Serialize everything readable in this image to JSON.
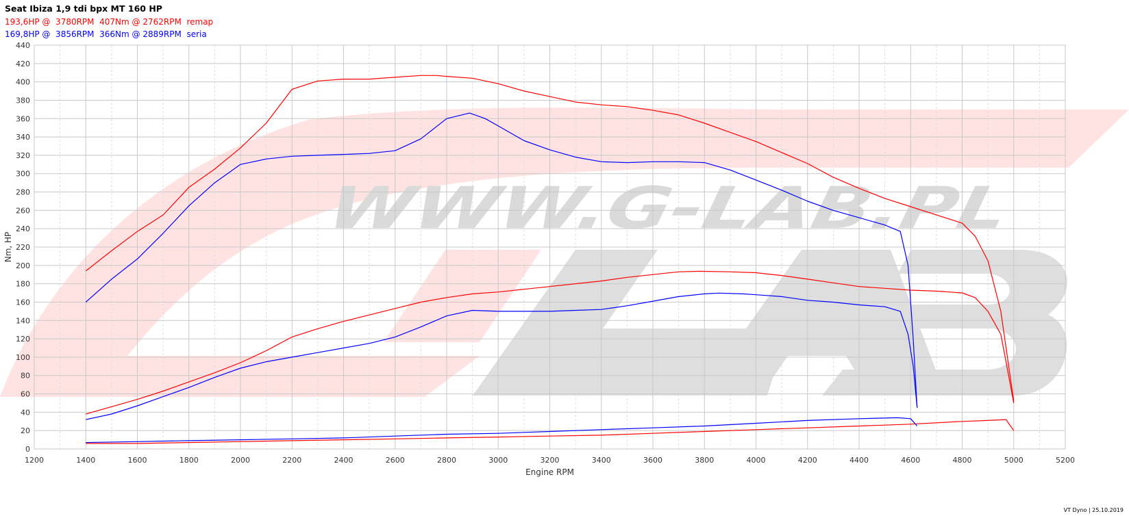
{
  "header": {
    "title": "Seat Ibiza 1,9 tdi bpx MT 160 HP",
    "remap_line": "193,6HP @  3780RPM  407Nm @ 2762RPM  remap",
    "seria_line": "169,8HP @  3856RPM  366Nm @ 2889RPM  seria"
  },
  "footer": {
    "text": "VT Dyno | 25.10.2019"
  },
  "watermark": {
    "text": "WWW.G-LAB.PL"
  },
  "colors": {
    "remap": "#ff0000",
    "seria": "#0000ff",
    "grid": "#c8c8c8",
    "watermark_red": "#ffe0e0",
    "watermark_gray": "#dcdcdc"
  },
  "chart_data": {
    "type": "line",
    "xlabel": "Engine RPM",
    "ylabel": "Nm, HP",
    "xlim": [
      1200,
      5200
    ],
    "ylim": [
      0,
      440
    ],
    "xticks": [
      1200,
      1400,
      1600,
      1800,
      2000,
      2200,
      2400,
      2600,
      2800,
      3000,
      3200,
      3400,
      3600,
      3800,
      4000,
      4200,
      4400,
      4600,
      4800,
      5000,
      5200
    ],
    "yticks": [
      0,
      20,
      40,
      60,
      80,
      100,
      120,
      140,
      160,
      180,
      200,
      220,
      240,
      260,
      280,
      300,
      320,
      340,
      360,
      380,
      400,
      420,
      440
    ],
    "grid": true,
    "series": [
      {
        "name": "remap",
        "color": "#ff0000",
        "kind": "torque",
        "x": [
          1400,
          1500,
          1600,
          1700,
          1800,
          1900,
          2000,
          2100,
          2200,
          2300,
          2400,
          2500,
          2600,
          2700,
          2762,
          2800,
          2900,
          3000,
          3100,
          3200,
          3300,
          3400,
          3500,
          3600,
          3700,
          3800,
          3900,
          4000,
          4100,
          4200,
          4300,
          4400,
          4500,
          4600,
          4700,
          4800,
          4850,
          4900,
          4950,
          5000
        ],
        "y": [
          194,
          216,
          237,
          255,
          285,
          305,
          328,
          355,
          392,
          401,
          403,
          403,
          405,
          407,
          407,
          406,
          404,
          398,
          390,
          384,
          378,
          375,
          373,
          369,
          364,
          355,
          345,
          335,
          323,
          311,
          296,
          284,
          273,
          264,
          255,
          246,
          232,
          205,
          150,
          52
        ]
      },
      {
        "name": "remap",
        "color": "#ff0000",
        "kind": "power",
        "x": [
          1400,
          1500,
          1600,
          1700,
          1800,
          1900,
          2000,
          2100,
          2200,
          2300,
          2400,
          2500,
          2600,
          2700,
          2800,
          2900,
          3000,
          3100,
          3200,
          3300,
          3400,
          3500,
          3600,
          3700,
          3780,
          3900,
          4000,
          4100,
          4200,
          4300,
          4400,
          4500,
          4600,
          4700,
          4800,
          4850,
          4900,
          4950,
          5000
        ],
        "y": [
          38,
          46,
          54,
          63,
          73,
          83,
          94,
          107,
          122,
          131,
          139,
          146,
          153,
          160,
          165,
          169,
          171,
          174,
          177,
          180,
          183,
          187,
          190,
          193,
          193.6,
          193,
          192,
          189,
          185,
          181,
          177,
          175,
          173,
          172,
          170,
          165,
          150,
          125,
          50
        ]
      },
      {
        "name": "remap",
        "color": "#ff0000",
        "kind": "boost",
        "x": [
          1400,
          1600,
          1800,
          2000,
          2200,
          2400,
          2600,
          2800,
          3000,
          3200,
          3400,
          3600,
          3800,
          4000,
          4200,
          4400,
          4600,
          4800,
          4900,
          4970,
          5000
        ],
        "y": [
          6,
          6,
          7,
          8,
          9,
          10,
          11,
          12,
          13,
          14,
          15,
          17,
          19,
          21,
          23,
          25,
          27,
          30,
          31,
          32,
          20
        ]
      },
      {
        "name": "seria",
        "color": "#0000ff",
        "kind": "torque",
        "x": [
          1400,
          1500,
          1600,
          1700,
          1800,
          1900,
          2000,
          2100,
          2200,
          2300,
          2400,
          2500,
          2600,
          2700,
          2800,
          2889,
          2950,
          3000,
          3100,
          3200,
          3300,
          3400,
          3500,
          3600,
          3700,
          3800,
          3900,
          4000,
          4100,
          4200,
          4300,
          4400,
          4500,
          4560,
          4590,
          4610,
          4620,
          4625
        ],
        "y": [
          160,
          185,
          207,
          235,
          265,
          290,
          310,
          316,
          319,
          320,
          321,
          322,
          325,
          338,
          360,
          366,
          360,
          352,
          336,
          326,
          318,
          313,
          312,
          313,
          313,
          312,
          304,
          293,
          282,
          270,
          260,
          252,
          244,
          237,
          200,
          120,
          70,
          45
        ]
      },
      {
        "name": "seria",
        "color": "#0000ff",
        "kind": "power",
        "x": [
          1400,
          1500,
          1600,
          1700,
          1800,
          1900,
          2000,
          2100,
          2200,
          2300,
          2400,
          2500,
          2600,
          2700,
          2800,
          2900,
          3000,
          3100,
          3200,
          3300,
          3400,
          3500,
          3600,
          3700,
          3800,
          3856,
          3950,
          4000,
          4100,
          4200,
          4300,
          4400,
          4500,
          4560,
          4590,
          4610,
          4620,
          4625
        ],
        "y": [
          32,
          38,
          47,
          57,
          67,
          78,
          88,
          95,
          100,
          105,
          110,
          115,
          122,
          133,
          145,
          151,
          150,
          150,
          150,
          151,
          152,
          156,
          161,
          166,
          169,
          169.8,
          169,
          168,
          166,
          162,
          160,
          157,
          155,
          150,
          125,
          90,
          60,
          45
        ]
      },
      {
        "name": "seria",
        "color": "#0000ff",
        "kind": "boost",
        "x": [
          1400,
          1600,
          1800,
          2000,
          2200,
          2400,
          2600,
          2800,
          3000,
          3200,
          3400,
          3600,
          3800,
          4000,
          4200,
          4400,
          4550,
          4600,
          4625
        ],
        "y": [
          7,
          8,
          9,
          10,
          11,
          12,
          14,
          16,
          17,
          19,
          21,
          23,
          25,
          28,
          31,
          33,
          34,
          33,
          25
        ]
      }
    ]
  }
}
